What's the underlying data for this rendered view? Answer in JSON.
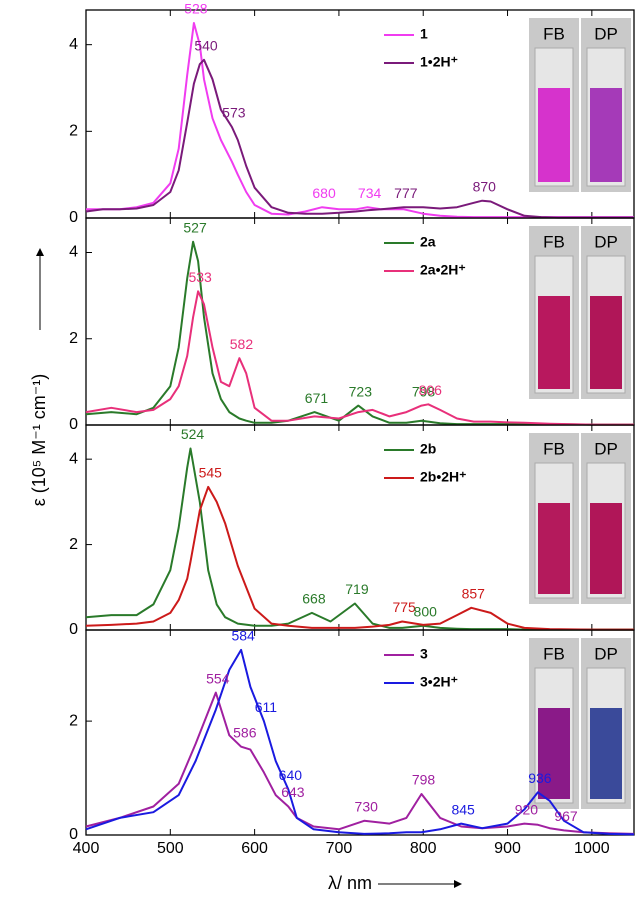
{
  "y_label": "ε (10⁵ M⁻¹ cm⁻¹)",
  "x_label": "λ/ nm",
  "chart_data": [
    {
      "type": "line",
      "ylim": [
        0,
        4.8
      ],
      "yticks": [
        0,
        2,
        4
      ],
      "xlim": [
        400,
        1050
      ],
      "x": [
        400,
        420,
        440,
        460,
        480,
        500,
        510,
        520,
        528,
        535,
        540,
        550,
        560,
        573,
        580,
        590,
        600,
        620,
        640,
        660,
        680,
        700,
        720,
        734,
        750,
        777,
        800,
        820,
        840,
        860,
        870,
        880,
        900,
        920,
        940,
        960,
        980,
        1000,
        1050
      ],
      "series": [
        {
          "name": "1",
          "color": "#f03cf0",
          "values": [
            0.2,
            0.2,
            0.2,
            0.25,
            0.35,
            0.8,
            1.6,
            3.3,
            4.5,
            4.0,
            3.2,
            2.3,
            1.8,
            1.3,
            1.0,
            0.6,
            0.3,
            0.1,
            0.08,
            0.15,
            0.25,
            0.2,
            0.2,
            0.25,
            0.2,
            0.2,
            0.1,
            0.05,
            0.03,
            0.02,
            0.02,
            0.02,
            0.02,
            0.02,
            0.02,
            0.02,
            0.02,
            0.02,
            0.02
          ]
        },
        {
          "name": "1•2H⁺",
          "color": "#7a1a7a",
          "values": [
            0.15,
            0.2,
            0.2,
            0.22,
            0.3,
            0.6,
            1.1,
            2.2,
            3.1,
            3.55,
            3.65,
            3.2,
            2.5,
            2.1,
            1.8,
            1.2,
            0.7,
            0.25,
            0.12,
            0.1,
            0.1,
            0.12,
            0.15,
            0.18,
            0.2,
            0.25,
            0.25,
            0.22,
            0.25,
            0.35,
            0.4,
            0.38,
            0.2,
            0.05,
            0.02,
            0.01,
            0.01,
            0.01,
            0.01
          ]
        }
      ],
      "annotations": [
        {
          "label": "528",
          "x": 528,
          "y": 4.5,
          "series": 0
        },
        {
          "label": "540",
          "x": 540,
          "y": 3.65,
          "series": 1
        },
        {
          "label": "573",
          "x": 573,
          "y": 2.1,
          "series": 1
        },
        {
          "label": "680",
          "x": 680,
          "y": 0.25,
          "series": 0
        },
        {
          "label": "734",
          "x": 734,
          "y": 0.25,
          "series": 0
        },
        {
          "label": "777",
          "x": 777,
          "y": 0.25,
          "series": 1
        },
        {
          "label": "870",
          "x": 870,
          "y": 0.4,
          "series": 1
        }
      ],
      "vials": [
        {
          "label": "FB",
          "color": "#d633cc"
        },
        {
          "label": "DP",
          "color": "#a53ab8"
        }
      ]
    },
    {
      "type": "line",
      "ylim": [
        0,
        4.8
      ],
      "yticks": [
        0,
        2,
        4
      ],
      "xlim": [
        400,
        1050
      ],
      "x": [
        400,
        430,
        460,
        480,
        500,
        510,
        520,
        527,
        533,
        540,
        550,
        560,
        570,
        582,
        590,
        600,
        620,
        640,
        671,
        700,
        723,
        740,
        760,
        780,
        798,
        806,
        820,
        840,
        860,
        880,
        900,
        920,
        950,
        1000,
        1050
      ],
      "series": [
        {
          "name": "2a",
          "color": "#2a7a2a",
          "values": [
            0.25,
            0.3,
            0.25,
            0.4,
            0.9,
            1.8,
            3.4,
            4.25,
            3.8,
            2.5,
            1.2,
            0.6,
            0.3,
            0.15,
            0.1,
            0.05,
            0.05,
            0.1,
            0.3,
            0.1,
            0.45,
            0.2,
            0.05,
            0.05,
            0.1,
            0.08,
            0.04,
            0.02,
            0.02,
            0.02,
            0.02,
            0.02,
            0.02,
            0.01,
            0.01
          ]
        },
        {
          "name": "2a•2H⁺",
          "color": "#e8307a",
          "values": [
            0.3,
            0.4,
            0.3,
            0.35,
            0.6,
            0.9,
            1.6,
            2.5,
            3.1,
            2.8,
            1.8,
            1.0,
            0.9,
            1.55,
            1.2,
            0.4,
            0.1,
            0.1,
            0.2,
            0.15,
            0.3,
            0.35,
            0.2,
            0.3,
            0.45,
            0.48,
            0.35,
            0.15,
            0.08,
            0.08,
            0.06,
            0.05,
            0.03,
            0.01,
            0.01
          ]
        }
      ],
      "annotations": [
        {
          "label": "527",
          "x": 527,
          "y": 4.25,
          "series": 0
        },
        {
          "label": "533",
          "x": 533,
          "y": 3.1,
          "series": 1
        },
        {
          "label": "582",
          "x": 582,
          "y": 1.55,
          "series": 1
        },
        {
          "label": "671",
          "x": 671,
          "y": 0.3,
          "series": 0
        },
        {
          "label": "723",
          "x": 723,
          "y": 0.45,
          "series": 0
        },
        {
          "label": "798",
          "x": 798,
          "y": 0.45,
          "series": 0
        },
        {
          "label": "806",
          "x": 806,
          "y": 0.48,
          "series": 1
        }
      ],
      "vials": [
        {
          "label": "FB",
          "color": "#b8185e"
        },
        {
          "label": "DP",
          "color": "#b01658"
        }
      ]
    },
    {
      "type": "line",
      "ylim": [
        0,
        4.8
      ],
      "yticks": [
        0,
        2,
        4
      ],
      "xlim": [
        400,
        1050
      ],
      "x": [
        400,
        430,
        460,
        480,
        500,
        510,
        520,
        524,
        535,
        545,
        555,
        565,
        580,
        600,
        620,
        640,
        668,
        690,
        719,
        740,
        760,
        775,
        800,
        820,
        840,
        857,
        880,
        900,
        920,
        950,
        1000,
        1050
      ],
      "series": [
        {
          "name": "2b",
          "color": "#2a7a2a",
          "values": [
            0.3,
            0.35,
            0.35,
            0.6,
            1.4,
            2.4,
            3.8,
            4.25,
            3.0,
            1.4,
            0.6,
            0.3,
            0.15,
            0.1,
            0.1,
            0.15,
            0.4,
            0.2,
            0.62,
            0.15,
            0.05,
            0.05,
            0.1,
            0.05,
            0.03,
            0.02,
            0.02,
            0.02,
            0.01,
            0.01,
            0.01,
            0.01
          ]
        },
        {
          "name": "2b•2H⁺",
          "color": "#cc1a1a",
          "values": [
            0.1,
            0.12,
            0.15,
            0.2,
            0.4,
            0.7,
            1.2,
            1.6,
            2.8,
            3.35,
            3.0,
            2.5,
            1.5,
            0.5,
            0.15,
            0.1,
            0.05,
            0.05,
            0.05,
            0.08,
            0.12,
            0.2,
            0.12,
            0.15,
            0.35,
            0.52,
            0.4,
            0.15,
            0.05,
            0.02,
            0.01,
            0.01
          ]
        }
      ],
      "annotations": [
        {
          "label": "524",
          "x": 524,
          "y": 4.25,
          "series": 0
        },
        {
          "label": "545",
          "x": 545,
          "y": 3.35,
          "series": 1
        },
        {
          "label": "668",
          "x": 668,
          "y": 0.4,
          "series": 0
        },
        {
          "label": "719",
          "x": 719,
          "y": 0.62,
          "series": 0
        },
        {
          "label": "775",
          "x": 775,
          "y": 0.2,
          "series": 1
        },
        {
          "label": "800",
          "x": 800,
          "y": 0.1,
          "series": 0
        },
        {
          "label": "857",
          "x": 857,
          "y": 0.52,
          "series": 1
        }
      ],
      "vials": [
        {
          "label": "FB",
          "color": "#b41a5c"
        },
        {
          "label": "DP",
          "color": "#b01658"
        }
      ]
    },
    {
      "type": "line",
      "ylim": [
        0,
        3.6
      ],
      "yticks": [
        0,
        2
      ],
      "xlim": [
        400,
        1050
      ],
      "xticks": [
        400,
        500,
        600,
        700,
        800,
        900,
        1000
      ],
      "x": [
        400,
        440,
        480,
        510,
        530,
        554,
        570,
        584,
        595,
        611,
        625,
        640,
        650,
        670,
        700,
        730,
        760,
        780,
        798,
        820,
        845,
        870,
        900,
        920,
        936,
        950,
        967,
        990,
        1020,
        1050
      ],
      "series": [
        {
          "name": "3",
          "color": "#a020a0",
          "values": [
            0.15,
            0.3,
            0.5,
            0.9,
            1.6,
            2.5,
            1.75,
            1.55,
            1.5,
            1.1,
            0.7,
            0.5,
            0.3,
            0.15,
            0.1,
            0.25,
            0.2,
            0.3,
            0.72,
            0.3,
            0.15,
            0.12,
            0.15,
            0.2,
            0.18,
            0.12,
            0.08,
            0.05,
            0.03,
            0.02
          ]
        },
        {
          "name": "3•2H⁺",
          "color": "#1a1ae0",
          "values": [
            0.1,
            0.3,
            0.4,
            0.7,
            1.3,
            2.2,
            2.9,
            3.25,
            2.6,
            2.0,
            1.3,
            0.8,
            0.3,
            0.1,
            0.05,
            0.02,
            0.03,
            0.05,
            0.05,
            0.1,
            0.2,
            0.12,
            0.2,
            0.45,
            0.75,
            0.6,
            0.25,
            0.05,
            0.02,
            0.01
          ]
        }
      ],
      "annotations": [
        {
          "label": "554",
          "x": 554,
          "y": 2.5,
          "series": 0
        },
        {
          "label": "584",
          "x": 584,
          "y": 3.25,
          "series": 1
        },
        {
          "label": "611",
          "x": 611,
          "y": 2.0,
          "series": 1
        },
        {
          "label": "586",
          "x": 586,
          "y": 1.55,
          "series": 0
        },
        {
          "label": "640",
          "x": 640,
          "y": 0.8,
          "series": 1
        },
        {
          "label": "643",
          "x": 643,
          "y": 0.5,
          "series": 0
        },
        {
          "label": "730",
          "x": 730,
          "y": 0.25,
          "series": 0
        },
        {
          "label": "798",
          "x": 798,
          "y": 0.72,
          "series": 0
        },
        {
          "label": "845",
          "x": 845,
          "y": 0.2,
          "series": 1
        },
        {
          "label": "936",
          "x": 936,
          "y": 0.75,
          "series": 1
        },
        {
          "label": "920",
          "x": 920,
          "y": 0.2,
          "series": 0
        },
        {
          "label": "967",
          "x": 967,
          "y": 0.08,
          "series": 0
        }
      ],
      "vials": [
        {
          "label": "FB",
          "color": "#8a1a88"
        },
        {
          "label": "DP",
          "color": "#3a4a9a"
        }
      ]
    }
  ]
}
